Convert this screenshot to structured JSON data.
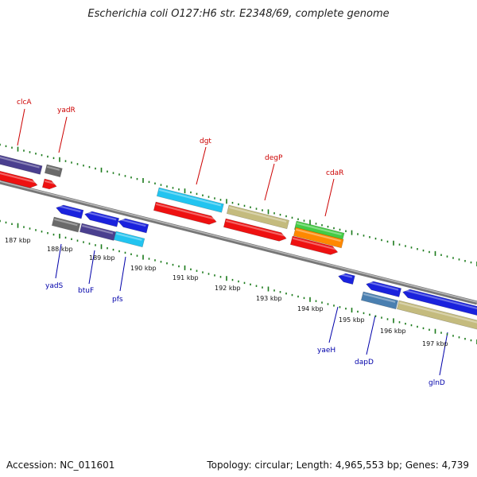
{
  "title": "Escherichia coli O127:H6 str. E2348/69, complete genome",
  "accession": "Accession: NC_011601",
  "topology": "Topology: circular; Length: 4,965,553 bp; Genes: 4,739",
  "kbp_labels": [
    "187 kbp",
    "188 kbp",
    "189 kbp",
    "190 kbp",
    "191 kbp",
    "192 kbp",
    "193 kbp",
    "194 kbp",
    "195 kbp",
    "196 kbp",
    "197 kbp"
  ],
  "genes_top": [
    "clcA",
    "yadR",
    "dgt",
    "degP",
    "cdaR"
  ],
  "genes_bottom": [
    "yadS",
    "btuF",
    "pfs",
    "yaeH",
    "dapD",
    "glnD"
  ],
  "colors": {
    "red": "#ee1111",
    "blue": "#1a22dd",
    "purple": "#4a3f8f",
    "grey": "#6a6a6a",
    "cyan": "#22c4f0",
    "khaki": "#c4bb7e",
    "green": "#44cc44",
    "orange": "#ff8800",
    "steel": "#4a7fb0",
    "tick": "#1a7a1a",
    "axis": "#888888"
  }
}
